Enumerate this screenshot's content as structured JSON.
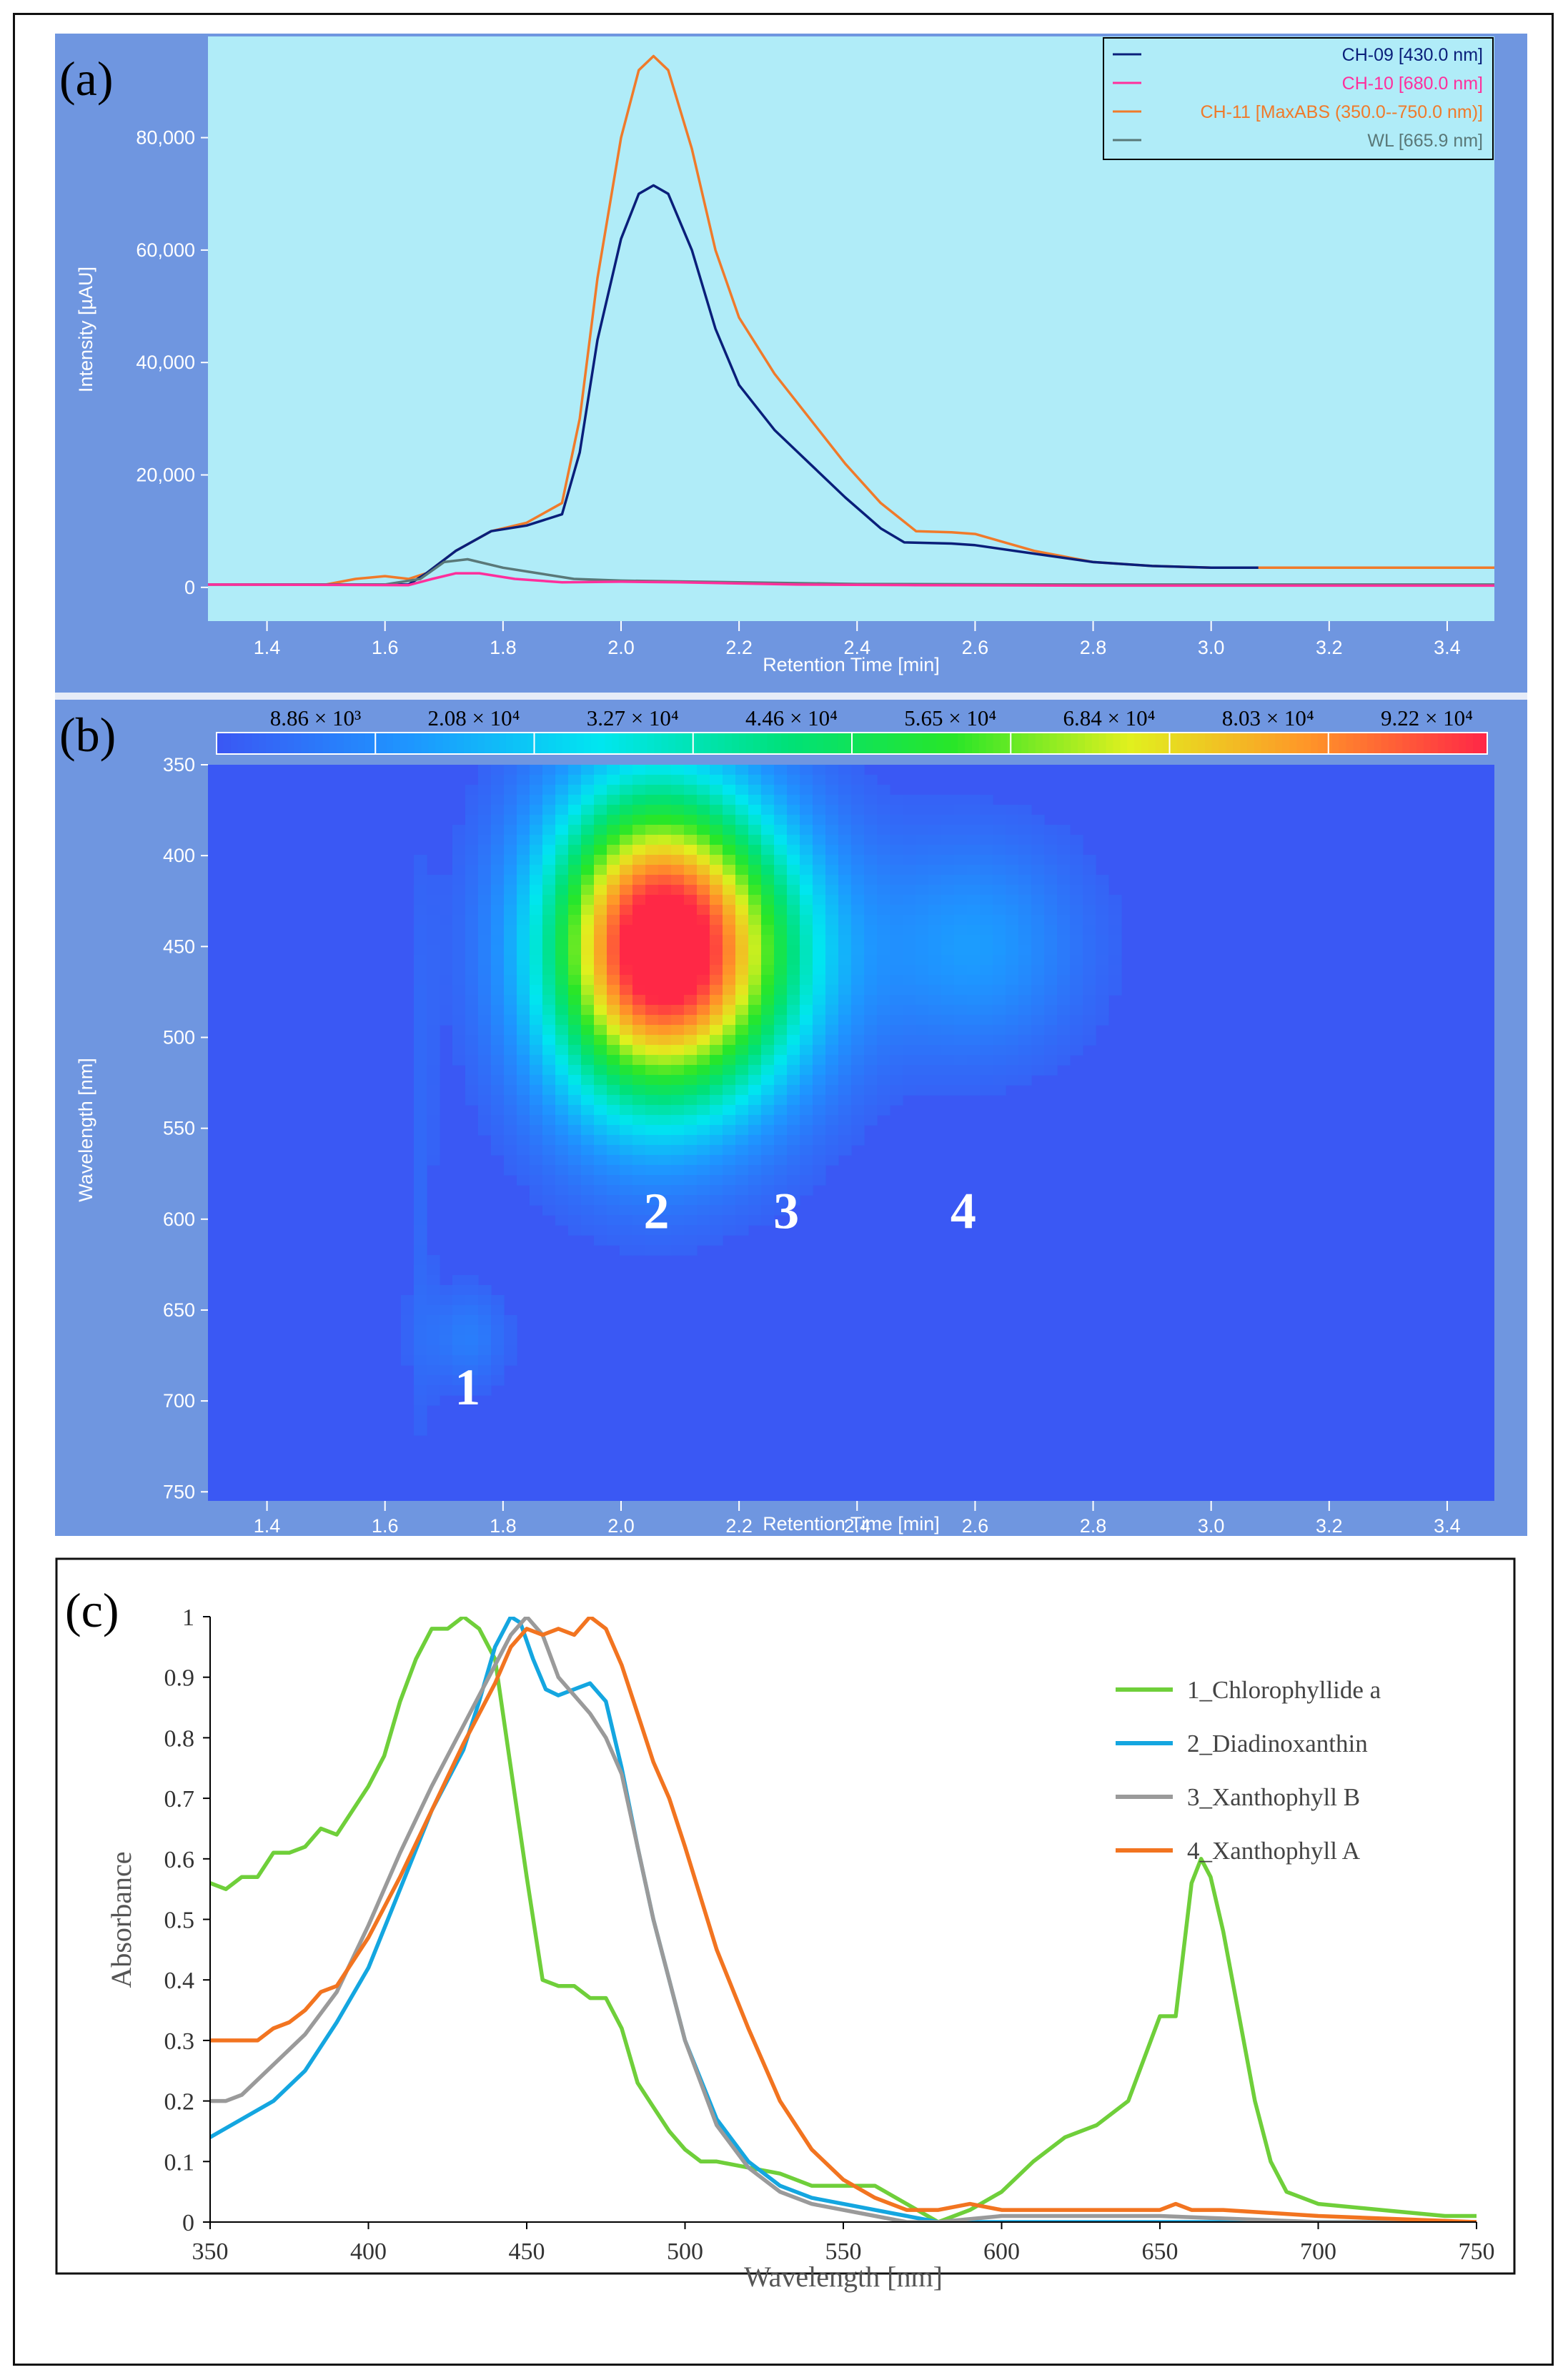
{
  "colors": {
    "panel_bg": "#6f96e0",
    "plot_bg_a": "#b0ecf8",
    "heat_bg": "#3a58f4",
    "ch09": "#0a1f7a",
    "ch10": "#ff2f9c",
    "ch11": "#f07a2a",
    "wl": "#5a7878",
    "chloro": "#6fcf3a",
    "diadino": "#14a6e0",
    "xanthoB": "#9a9a9a",
    "xanthoA": "#f27420",
    "axis_text": "#ffffff"
  },
  "panel_a": {
    "label": "(a)",
    "chart_data": {
      "type": "line",
      "ylabel": "Intensity [µAU]",
      "xlabel": "Retention Time [min]",
      "xlim": [
        1.3,
        3.48
      ],
      "ylim": [
        -6000,
        98000
      ],
      "xticks": [
        "1.4",
        "1.6",
        "1.8",
        "2.0",
        "2.2",
        "2.4",
        "2.6",
        "2.8",
        "3.0",
        "3.2",
        "3.4"
      ],
      "yticks": [
        {
          "value": 0,
          "label": "0"
        },
        {
          "value": 20000,
          "label": "20,000"
        },
        {
          "value": 40000,
          "label": "40,000"
        },
        {
          "value": 60000,
          "label": "60,000"
        },
        {
          "value": 80000,
          "label": "80,000"
        }
      ],
      "legend": [
        "CH-09 [430.0 nm]",
        "CH-10 [680.0 nm]",
        "CH-11 [MaxABS (350.0--750.0 nm)]",
        "WL [665.9 nm]"
      ],
      "series": [
        {
          "name": "CH-11 [MaxABS (350.0--750.0 nm)]",
          "color_key": "ch11",
          "x": [
            1.3,
            1.5,
            1.55,
            1.6,
            1.64,
            1.67,
            1.72,
            1.78,
            1.84,
            1.9,
            1.93,
            1.96,
            2.0,
            2.03,
            2.055,
            2.08,
            2.12,
            2.16,
            2.2,
            2.26,
            2.32,
            2.38,
            2.44,
            2.5,
            2.56,
            2.6,
            2.7,
            2.8,
            2.9,
            3.0,
            3.2,
            3.48
          ],
          "y": [
            500,
            500,
            1500,
            2000,
            1500,
            2500,
            6500,
            10000,
            11500,
            15000,
            30000,
            55000,
            80000,
            92000,
            94500,
            92000,
            78000,
            60000,
            48000,
            38000,
            30000,
            22000,
            15000,
            10000,
            9800,
            9500,
            6500,
            4500,
            3800,
            3500,
            3500,
            3500
          ]
        },
        {
          "name": "CH-09 [430.0 nm]",
          "color_key": "ch09",
          "x": [
            1.3,
            1.6,
            1.64,
            1.67,
            1.72,
            1.78,
            1.84,
            1.9,
            1.93,
            1.96,
            2.0,
            2.03,
            2.055,
            2.08,
            2.12,
            2.16,
            2.2,
            2.26,
            2.32,
            2.38,
            2.44,
            2.48,
            2.56,
            2.6,
            2.7,
            2.8,
            2.9,
            3.0,
            3.08
          ],
          "y": [
            500,
            500,
            500,
            2500,
            6500,
            10000,
            11000,
            13000,
            24000,
            44000,
            62000,
            70000,
            71500,
            70000,
            60000,
            46000,
            36000,
            28000,
            22000,
            16000,
            10500,
            8000,
            7800,
            7500,
            6000,
            4500,
            3800,
            3500,
            3500
          ]
        },
        {
          "name": "WL [665.9 nm]",
          "color_key": "wl",
          "x": [
            1.3,
            1.6,
            1.66,
            1.7,
            1.74,
            1.8,
            1.86,
            1.92,
            2.0,
            2.4,
            2.8,
            3.48
          ],
          "y": [
            500,
            500,
            1500,
            4500,
            5000,
            3500,
            2500,
            1500,
            1200,
            600,
            500,
            500
          ]
        },
        {
          "name": "CH-10 [680.0 nm]",
          "color_key": "ch10",
          "x": [
            1.3,
            1.64,
            1.68,
            1.72,
            1.76,
            1.82,
            1.9,
            2.0,
            2.1,
            2.3,
            2.5,
            2.8,
            3.2,
            3.48
          ],
          "y": [
            500,
            400,
            1500,
            2500,
            2500,
            1500,
            900,
            1000,
            900,
            500,
            400,
            300,
            300,
            300
          ]
        }
      ]
    }
  },
  "panel_b": {
    "label": "(b)",
    "chart_data": {
      "type": "heatmap",
      "ylabel": "Wavelength [nm]",
      "xlabel": "Retention Time [min]",
      "xlim": [
        1.3,
        3.48
      ],
      "ylim": [
        350,
        755
      ],
      "xticks": [
        "1.4",
        "1.6",
        "1.8",
        "2.0",
        "2.2",
        "2.4",
        "2.6",
        "2.8",
        "3.0",
        "3.2",
        "3.4"
      ],
      "yticks": [
        "350",
        "400",
        "450",
        "500",
        "550",
        "600",
        "650",
        "700",
        "750"
      ],
      "colorbar_labels": [
        "8.86 × 10³",
        "2.08 × 10⁴",
        "3.27 × 10⁴",
        "4.46 × 10⁴",
        "5.65 × 10⁴",
        "6.84 × 10⁴",
        "8.03 × 10⁴",
        "9.22 × 10⁴"
      ],
      "peak_labels": [
        {
          "text": "1",
          "rt": 1.74,
          "wl": 702
        },
        {
          "text": "2",
          "rt": 2.06,
          "wl": 605
        },
        {
          "text": "3",
          "rt": 2.28,
          "wl": 605
        },
        {
          "text": "4",
          "rt": 2.58,
          "wl": 605
        }
      ],
      "blobs": [
        {
          "rt": 2.05,
          "wl": 450,
          "srt": 0.13,
          "swl": 62,
          "amp": 1.0
        },
        {
          "rt": 2.22,
          "wl": 455,
          "srt": 0.12,
          "swl": 55,
          "amp": 0.3
        },
        {
          "rt": 2.6,
          "wl": 450,
          "srt": 0.13,
          "swl": 42,
          "amp": 0.16
        },
        {
          "rt": 1.74,
          "wl": 665,
          "srt": 0.05,
          "swl": 20,
          "amp": 0.09
        },
        {
          "rt": 1.66,
          "wl": 580,
          "srt": 0.02,
          "swl": 140,
          "amp": 0.04
        }
      ]
    }
  },
  "panel_c": {
    "label": "(c)",
    "chart_data": {
      "type": "line",
      "ylabel": "Absorbance",
      "xlabel": "Wavelength  [nm]",
      "xlim": [
        350,
        750
      ],
      "ylim": [
        0,
        1
      ],
      "xticks": [
        "350",
        "400",
        "450",
        "500",
        "550",
        "600",
        "650",
        "700",
        "750"
      ],
      "yticks": [
        "0",
        "0.1",
        "0.2",
        "0.3",
        "0.4",
        "0.5",
        "0.6",
        "0.7",
        "0.8",
        "0.9",
        "1"
      ],
      "series": [
        {
          "name": "1_Chlorophyllide a",
          "color_key": "chloro",
          "x": [
            350,
            355,
            360,
            365,
            370,
            375,
            380,
            385,
            390,
            395,
            400,
            405,
            410,
            415,
            420,
            425,
            430,
            435,
            440,
            445,
            450,
            455,
            460,
            465,
            470,
            475,
            480,
            485,
            490,
            495,
            500,
            505,
            510,
            520,
            530,
            540,
            550,
            560,
            570,
            580,
            590,
            600,
            610,
            620,
            630,
            640,
            650,
            655,
            660,
            663,
            666,
            670,
            675,
            680,
            685,
            690,
            700,
            720,
            740,
            750
          ],
          "y": [
            0.56,
            0.55,
            0.57,
            0.57,
            0.61,
            0.61,
            0.62,
            0.65,
            0.64,
            0.68,
            0.72,
            0.77,
            0.86,
            0.93,
            0.98,
            0.98,
            1.0,
            0.98,
            0.93,
            0.75,
            0.57,
            0.4,
            0.39,
            0.39,
            0.37,
            0.37,
            0.32,
            0.23,
            0.19,
            0.15,
            0.12,
            0.1,
            0.1,
            0.09,
            0.08,
            0.06,
            0.06,
            0.06,
            0.03,
            0.0,
            0.02,
            0.05,
            0.1,
            0.14,
            0.16,
            0.2,
            0.34,
            0.34,
            0.56,
            0.6,
            0.57,
            0.48,
            0.34,
            0.2,
            0.1,
            0.05,
            0.03,
            0.02,
            0.01,
            0.01
          ]
        },
        {
          "name": "2_Diadinoxanthin",
          "color_key": "diadino",
          "x": [
            350,
            360,
            370,
            380,
            390,
            400,
            410,
            420,
            430,
            435,
            440,
            445,
            448,
            452,
            456,
            460,
            465,
            470,
            475,
            480,
            485,
            490,
            495,
            500,
            510,
            520,
            530,
            540,
            550,
            560,
            570,
            580,
            600,
            650,
            700,
            750
          ],
          "y": [
            0.14,
            0.17,
            0.2,
            0.25,
            0.33,
            0.42,
            0.55,
            0.68,
            0.78,
            0.86,
            0.95,
            1.0,
            0.99,
            0.93,
            0.88,
            0.87,
            0.88,
            0.89,
            0.86,
            0.75,
            0.62,
            0.5,
            0.4,
            0.3,
            0.17,
            0.1,
            0.06,
            0.04,
            0.03,
            0.02,
            0.01,
            0.0,
            0.0,
            0.0,
            0.0,
            0.0
          ]
        },
        {
          "name": "3_Xanthophyll B",
          "color_key": "xanthoB",
          "x": [
            350,
            355,
            360,
            370,
            380,
            390,
            400,
            410,
            420,
            430,
            440,
            445,
            450,
            455,
            460,
            465,
            470,
            475,
            480,
            485,
            490,
            495,
            500,
            510,
            520,
            530,
            540,
            550,
            560,
            570,
            580,
            600,
            650,
            700,
            750
          ],
          "y": [
            0.2,
            0.2,
            0.21,
            0.26,
            0.31,
            0.38,
            0.49,
            0.61,
            0.72,
            0.82,
            0.92,
            0.97,
            1.0,
            0.97,
            0.9,
            0.87,
            0.84,
            0.8,
            0.74,
            0.62,
            0.5,
            0.4,
            0.3,
            0.16,
            0.09,
            0.05,
            0.03,
            0.02,
            0.01,
            0.0,
            0.0,
            0.01,
            0.01,
            0.0,
            0.0
          ]
        },
        {
          "name": "4_Xanthophyll A",
          "color_key": "xanthoA",
          "x": [
            350,
            360,
            365,
            370,
            375,
            380,
            385,
            390,
            400,
            410,
            420,
            430,
            440,
            445,
            450,
            455,
            460,
            465,
            470,
            475,
            480,
            485,
            490,
            495,
            500,
            510,
            520,
            530,
            540,
            550,
            560,
            570,
            580,
            590,
            600,
            620,
            640,
            650,
            655,
            660,
            670,
            700,
            750
          ],
          "y": [
            0.3,
            0.3,
            0.3,
            0.32,
            0.33,
            0.35,
            0.38,
            0.39,
            0.47,
            0.57,
            0.68,
            0.79,
            0.89,
            0.95,
            0.98,
            0.97,
            0.98,
            0.97,
            1.0,
            0.98,
            0.92,
            0.84,
            0.76,
            0.7,
            0.62,
            0.45,
            0.32,
            0.2,
            0.12,
            0.07,
            0.04,
            0.02,
            0.02,
            0.03,
            0.02,
            0.02,
            0.02,
            0.02,
            0.03,
            0.02,
            0.02,
            0.01,
            0.0
          ]
        }
      ]
    }
  }
}
